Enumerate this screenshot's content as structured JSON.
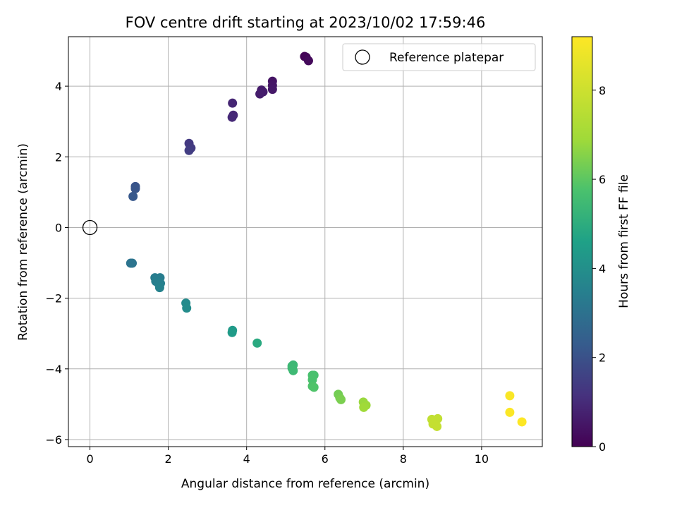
{
  "chart_data": {
    "type": "scatter",
    "title": "FOV centre drift starting at 2023/10/02 17:59:46",
    "xlabel": "Angular distance from reference (arcmin)",
    "ylabel": "Rotation from reference (arcmin)",
    "xlim": [
      -0.55,
      11.55
    ],
    "ylim": [
      -6.2,
      5.4
    ],
    "xticks": [
      0,
      2,
      4,
      6,
      8,
      10
    ],
    "yticks": [
      -6,
      -4,
      -2,
      0,
      2,
      4
    ],
    "grid": true,
    "legend": {
      "placement": "top-right",
      "entries": [
        "Reference platepar"
      ]
    },
    "reference_point": {
      "label": "Reference platepar",
      "x": 0,
      "y": 0
    },
    "colorbar": {
      "label": "Hours from first FF file",
      "range": [
        0,
        9.2
      ],
      "ticks": [
        0,
        2,
        4,
        6,
        8
      ],
      "colormap": "viridis"
    },
    "points": [
      {
        "x": 5.48,
        "y": 4.84,
        "hours": 0.05
      },
      {
        "x": 5.52,
        "y": 4.82,
        "hours": 0.1
      },
      {
        "x": 5.58,
        "y": 4.72,
        "hours": 0.2
      },
      {
        "x": 4.66,
        "y": 4.14,
        "hours": 0.45
      },
      {
        "x": 4.66,
        "y": 4.02,
        "hours": 0.5
      },
      {
        "x": 4.66,
        "y": 3.91,
        "hours": 0.55
      },
      {
        "x": 4.38,
        "y": 3.89,
        "hours": 0.6
      },
      {
        "x": 4.42,
        "y": 3.84,
        "hours": 0.62
      },
      {
        "x": 4.34,
        "y": 3.78,
        "hours": 0.65
      },
      {
        "x": 3.64,
        "y": 3.52,
        "hours": 0.85
      },
      {
        "x": 3.66,
        "y": 3.18,
        "hours": 0.9
      },
      {
        "x": 3.63,
        "y": 3.12,
        "hours": 0.95
      },
      {
        "x": 2.53,
        "y": 2.38,
        "hours": 1.35
      },
      {
        "x": 2.58,
        "y": 2.25,
        "hours": 1.4
      },
      {
        "x": 2.53,
        "y": 2.18,
        "hours": 1.45
      },
      {
        "x": 1.16,
        "y": 1.16,
        "hours": 2.05
      },
      {
        "x": 1.16,
        "y": 1.1,
        "hours": 2.1
      },
      {
        "x": 1.1,
        "y": 0.88,
        "hours": 2.2
      },
      {
        "x": 1.04,
        "y": -1.01,
        "hours": 3.05
      },
      {
        "x": 1.08,
        "y": -1.01,
        "hours": 3.1
      },
      {
        "x": 1.66,
        "y": -1.42,
        "hours": 3.35
      },
      {
        "x": 1.79,
        "y": -1.42,
        "hours": 3.4
      },
      {
        "x": 1.68,
        "y": -1.52,
        "hours": 3.42
      },
      {
        "x": 1.73,
        "y": -1.56,
        "hours": 3.45
      },
      {
        "x": 1.8,
        "y": -1.58,
        "hours": 3.5
      },
      {
        "x": 1.78,
        "y": -1.7,
        "hours": 3.55
      },
      {
        "x": 2.45,
        "y": -2.14,
        "hours": 3.85
      },
      {
        "x": 2.47,
        "y": -2.28,
        "hours": 3.9
      },
      {
        "x": 3.64,
        "y": -2.91,
        "hours": 4.35
      },
      {
        "x": 3.63,
        "y": -2.97,
        "hours": 4.4
      },
      {
        "x": 4.27,
        "y": -3.27,
        "hours": 4.9
      },
      {
        "x": 5.16,
        "y": -3.92,
        "hours": 5.35
      },
      {
        "x": 5.19,
        "y": -3.89,
        "hours": 5.4
      },
      {
        "x": 5.16,
        "y": -3.98,
        "hours": 5.42
      },
      {
        "x": 5.19,
        "y": -4.05,
        "hours": 5.45
      },
      {
        "x": 5.68,
        "y": -4.18,
        "hours": 5.7
      },
      {
        "x": 5.72,
        "y": -4.18,
        "hours": 5.72
      },
      {
        "x": 5.68,
        "y": -4.31,
        "hours": 5.75
      },
      {
        "x": 5.68,
        "y": -4.49,
        "hours": 5.8
      },
      {
        "x": 5.72,
        "y": -4.52,
        "hours": 5.82
      },
      {
        "x": 6.34,
        "y": -4.72,
        "hours": 6.3
      },
      {
        "x": 6.38,
        "y": -4.82,
        "hours": 6.35
      },
      {
        "x": 6.41,
        "y": -4.87,
        "hours": 6.4
      },
      {
        "x": 6.98,
        "y": -4.94,
        "hours": 6.8
      },
      {
        "x": 7.05,
        "y": -5.03,
        "hours": 6.85
      },
      {
        "x": 6.99,
        "y": -5.09,
        "hours": 6.9
      },
      {
        "x": 8.73,
        "y": -5.43,
        "hours": 7.7
      },
      {
        "x": 8.88,
        "y": -5.41,
        "hours": 7.72
      },
      {
        "x": 8.79,
        "y": -5.48,
        "hours": 7.75
      },
      {
        "x": 8.76,
        "y": -5.56,
        "hours": 7.78
      },
      {
        "x": 8.86,
        "y": -5.63,
        "hours": 7.8
      },
      {
        "x": 10.72,
        "y": -4.76,
        "hours": 9.1
      },
      {
        "x": 10.72,
        "y": -5.23,
        "hours": 9.15
      },
      {
        "x": 11.03,
        "y": -5.5,
        "hours": 9.2
      }
    ]
  }
}
